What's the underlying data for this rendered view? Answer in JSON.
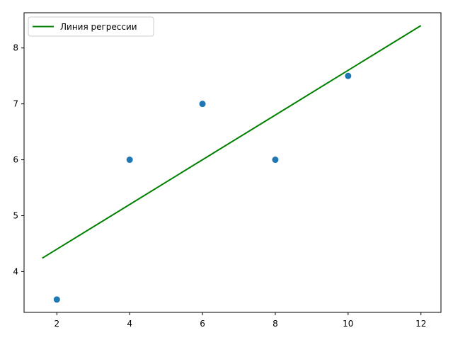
{
  "chart_data": {
    "type": "scatter",
    "title": "",
    "xlabel": "",
    "ylabel": "",
    "xlim": [
      1.1,
      12.55
    ],
    "ylim": [
      3.27,
      8.63
    ],
    "xticks": [
      2,
      4,
      6,
      8,
      10,
      12
    ],
    "yticks": [
      4,
      5,
      6,
      7,
      8
    ],
    "xtick_labels": [
      "2",
      "4",
      "6",
      "8",
      "10",
      "12"
    ],
    "ytick_labels": [
      "4",
      "5",
      "6",
      "7",
      "8"
    ],
    "grid": false,
    "legend_position": "top-left",
    "series": [
      {
        "kind": "scatter",
        "color": "#1f77b4",
        "x": [
          2,
          4,
          6,
          8,
          10
        ],
        "y": [
          3.5,
          6.0,
          7.0,
          6.0,
          7.5
        ]
      },
      {
        "kind": "line",
        "name": "Линия регрессии",
        "color": "#008000",
        "x": [
          1.6,
          12.0
        ],
        "y": [
          4.24,
          8.4
        ]
      }
    ]
  }
}
